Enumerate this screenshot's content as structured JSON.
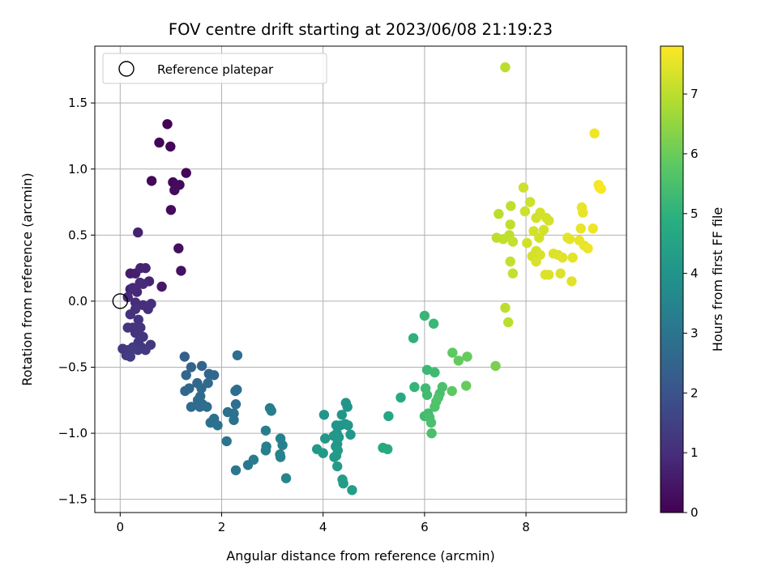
{
  "chart_data": {
    "type": "scatter",
    "title": "FOV centre drift starting at 2023/06/08 21:19:23",
    "xlabel": "Angular distance from reference (arcmin)",
    "ylabel": "Rotation from reference (arcmin)",
    "xlim": [
      -0.5,
      9.98
    ],
    "ylim": [
      -1.6,
      1.93
    ],
    "xticks": [
      0,
      2,
      4,
      6,
      8
    ],
    "xtick_labels": [
      "0",
      "2",
      "4",
      "6",
      "8"
    ],
    "yticks": [
      -1.5,
      -1.0,
      -0.5,
      0.0,
      0.5,
      1.0,
      1.5
    ],
    "ytick_labels": [
      "−1.5",
      "−1.0",
      "−0.5",
      "0.0",
      "0.5",
      "1.0",
      "1.5"
    ],
    "grid": true,
    "legend": {
      "position": "top-left",
      "entries": [
        {
          "label": "Reference platepar",
          "marker": "open-circle"
        }
      ]
    },
    "reference_point": {
      "x": 0.0,
      "y": 0.0
    },
    "colorbar": {
      "label": "Hours from first FF file",
      "min": 0,
      "max": 7.8,
      "colormap": "viridis",
      "ticks": [
        0,
        1,
        2,
        3,
        4,
        5,
        6,
        7
      ],
      "tick_labels": [
        "0",
        "1",
        "2",
        "3",
        "4",
        "5",
        "6",
        "7"
      ]
    },
    "points": [
      [
        0.93,
        1.34,
        0.05
      ],
      [
        0.77,
        1.2,
        0.08
      ],
      [
        0.99,
        1.17,
        0.1
      ],
      [
        1.3,
        0.97,
        0.12
      ],
      [
        0.62,
        0.91,
        0.15
      ],
      [
        1.04,
        0.9,
        0.18
      ],
      [
        1.17,
        0.88,
        0.2
      ],
      [
        1.07,
        0.84,
        0.22
      ],
      [
        1.0,
        0.69,
        0.25
      ],
      [
        1.15,
        0.4,
        0.3
      ],
      [
        1.2,
        0.23,
        0.35
      ],
      [
        0.82,
        0.11,
        0.5
      ],
      [
        0.2,
        0.21,
        0.6
      ],
      [
        0.3,
        0.21,
        0.65
      ],
      [
        0.2,
        0.09,
        0.7
      ],
      [
        0.4,
        0.25,
        0.75
      ],
      [
        0.5,
        0.25,
        0.78
      ],
      [
        0.57,
        0.15,
        0.8
      ],
      [
        0.33,
        0.07,
        0.85
      ],
      [
        0.45,
        0.13,
        0.88
      ],
      [
        0.35,
        0.52,
        0.7
      ],
      [
        0.39,
        0.14,
        0.9
      ],
      [
        0.25,
        0.1,
        0.9
      ],
      [
        0.15,
        0.03,
        0.95
      ],
      [
        0.3,
        -0.01,
        1.0
      ],
      [
        0.45,
        -0.03,
        1.0
      ],
      [
        0.61,
        -0.02,
        1.05
      ],
      [
        0.55,
        -0.06,
        1.05
      ],
      [
        0.3,
        -0.06,
        1.08
      ],
      [
        0.2,
        -0.1,
        1.1
      ],
      [
        0.36,
        -0.14,
        1.12
      ],
      [
        0.25,
        -0.2,
        1.15
      ],
      [
        0.4,
        -0.2,
        1.15
      ],
      [
        0.3,
        -0.24,
        1.18
      ],
      [
        0.15,
        -0.2,
        1.18
      ],
      [
        0.45,
        -0.27,
        1.2
      ],
      [
        0.36,
        -0.31,
        1.22
      ],
      [
        0.25,
        -0.35,
        1.25
      ],
      [
        0.42,
        -0.35,
        1.25
      ],
      [
        0.6,
        -0.33,
        1.28
      ],
      [
        0.05,
        -0.36,
        1.3
      ],
      [
        0.15,
        -0.37,
        1.3
      ],
      [
        0.5,
        -0.37,
        1.32
      ],
      [
        0.12,
        -0.41,
        1.35
      ],
      [
        0.35,
        -0.37,
        1.35
      ],
      [
        0.2,
        -0.42,
        1.38
      ],
      [
        0.25,
        -0.36,
        1.4
      ],
      [
        1.27,
        -0.42,
        2.4
      ],
      [
        1.61,
        -0.49,
        2.5
      ],
      [
        1.4,
        -0.5,
        2.5
      ],
      [
        1.3,
        -0.56,
        2.55
      ],
      [
        1.75,
        -0.55,
        2.6
      ],
      [
        1.85,
        -0.56,
        2.6
      ],
      [
        2.31,
        -0.41,
        2.8
      ],
      [
        1.52,
        -0.62,
        2.6
      ],
      [
        1.73,
        -0.62,
        2.7
      ],
      [
        1.6,
        -0.66,
        2.65
      ],
      [
        1.36,
        -0.66,
        2.6
      ],
      [
        1.28,
        -0.68,
        2.6
      ],
      [
        2.3,
        -0.67,
        2.8
      ],
      [
        2.27,
        -0.68,
        2.8
      ],
      [
        1.58,
        -0.72,
        2.7
      ],
      [
        1.53,
        -0.75,
        2.7
      ],
      [
        1.62,
        -0.78,
        2.75
      ],
      [
        2.28,
        -0.78,
        2.85
      ],
      [
        1.4,
        -0.8,
        2.7
      ],
      [
        1.57,
        -0.8,
        2.75
      ],
      [
        1.71,
        -0.8,
        2.8
      ],
      [
        2.12,
        -0.84,
        2.9
      ],
      [
        2.24,
        -0.85,
        2.9
      ],
      [
        1.85,
        -0.89,
        2.85
      ],
      [
        1.78,
        -0.92,
        2.85
      ],
      [
        2.24,
        -0.9,
        2.9
      ],
      [
        1.92,
        -0.94,
        2.9
      ],
      [
        2.1,
        -1.06,
        3.0
      ],
      [
        2.28,
        -1.28,
        3.1
      ],
      [
        2.52,
        -1.24,
        3.15
      ],
      [
        2.63,
        -1.2,
        3.2
      ],
      [
        2.95,
        -0.81,
        3.25
      ],
      [
        2.98,
        -0.83,
        3.3
      ],
      [
        2.87,
        -0.98,
        3.3
      ],
      [
        3.16,
        -1.04,
        3.35
      ],
      [
        3.2,
        -1.09,
        3.4
      ],
      [
        2.88,
        -1.1,
        3.35
      ],
      [
        2.87,
        -1.13,
        3.35
      ],
      [
        3.15,
        -1.16,
        3.4
      ],
      [
        3.16,
        -1.18,
        3.45
      ],
      [
        3.27,
        -1.34,
        3.5
      ],
      [
        4.02,
        -0.86,
        4.0
      ],
      [
        4.45,
        -0.77,
        4.05
      ],
      [
        4.48,
        -0.8,
        4.05
      ],
      [
        4.37,
        -0.86,
        4.05
      ],
      [
        4.34,
        -0.94,
        4.05
      ],
      [
        4.26,
        -0.94,
        4.0
      ],
      [
        4.44,
        -0.93,
        4.05
      ],
      [
        4.49,
        -0.94,
        4.1
      ],
      [
        4.27,
        -1.0,
        4.05
      ],
      [
        4.54,
        -1.01,
        4.1
      ],
      [
        4.31,
        -1.03,
        4.1
      ],
      [
        4.21,
        -1.02,
        4.1
      ],
      [
        4.04,
        -1.04,
        4.1
      ],
      [
        4.28,
        -1.08,
        4.15
      ],
      [
        4.25,
        -1.1,
        4.15
      ],
      [
        3.88,
        -1.12,
        4.15
      ],
      [
        4.29,
        -1.13,
        4.2
      ],
      [
        4.0,
        -1.15,
        4.2
      ],
      [
        4.26,
        -1.17,
        4.2
      ],
      [
        4.22,
        -1.18,
        4.2
      ],
      [
        4.28,
        -1.25,
        4.25
      ],
      [
        4.38,
        -1.35,
        4.3
      ],
      [
        4.4,
        -1.38,
        4.3
      ],
      [
        4.57,
        -1.43,
        4.35
      ],
      [
        5.29,
        -0.87,
        4.6
      ],
      [
        5.18,
        -1.11,
        4.65
      ],
      [
        5.27,
        -1.12,
        4.7
      ],
      [
        5.53,
        -0.73,
        4.75
      ],
      [
        5.78,
        -0.28,
        5.0
      ],
      [
        5.8,
        -0.65,
        5.1
      ],
      [
        6.0,
        -0.11,
        5.15
      ],
      [
        6.18,
        -0.17,
        5.2
      ],
      [
        6.05,
        -0.52,
        5.25
      ],
      [
        6.2,
        -0.54,
        5.3
      ],
      [
        6.02,
        -0.66,
        5.3
      ],
      [
        6.05,
        -0.71,
        5.35
      ],
      [
        6.3,
        -0.7,
        5.5
      ],
      [
        6.35,
        -0.65,
        5.5
      ],
      [
        6.27,
        -0.73,
        5.55
      ],
      [
        6.23,
        -0.76,
        5.6
      ],
      [
        6.2,
        -0.8,
        5.6
      ],
      [
        6.0,
        -0.87,
        5.35
      ],
      [
        6.07,
        -0.85,
        5.4
      ],
      [
        6.1,
        -0.88,
        5.45
      ],
      [
        6.13,
        -0.92,
        5.5
      ],
      [
        6.14,
        -1.0,
        5.5
      ],
      [
        6.54,
        -0.68,
        5.8
      ],
      [
        6.67,
        -0.45,
        5.9
      ],
      [
        6.55,
        -0.39,
        5.85
      ],
      [
        6.84,
        -0.42,
        5.95
      ],
      [
        6.82,
        -0.64,
        5.95
      ],
      [
        7.4,
        -0.49,
        6.2
      ],
      [
        7.59,
        1.77,
        7.0
      ],
      [
        7.46,
        0.66,
        7.0
      ],
      [
        7.7,
        0.72,
        7.05
      ],
      [
        7.69,
        0.58,
        7.05
      ],
      [
        7.42,
        0.48,
        7.0
      ],
      [
        7.55,
        0.47,
        7.05
      ],
      [
        7.67,
        0.5,
        7.05
      ],
      [
        7.74,
        0.45,
        7.1
      ],
      [
        7.59,
        -0.05,
        7.0
      ],
      [
        7.65,
        -0.16,
        7.0
      ],
      [
        7.69,
        0.3,
        7.1
      ],
      [
        7.74,
        0.21,
        7.1
      ],
      [
        7.95,
        0.86,
        7.2
      ],
      [
        8.08,
        0.75,
        7.2
      ],
      [
        7.98,
        0.68,
        7.2
      ],
      [
        8.2,
        0.63,
        7.25
      ],
      [
        8.28,
        0.67,
        7.3
      ],
      [
        8.4,
        0.63,
        7.3
      ],
      [
        8.45,
        0.61,
        7.3
      ],
      [
        8.35,
        0.54,
        7.3
      ],
      [
        8.15,
        0.53,
        7.3
      ],
      [
        8.02,
        0.44,
        7.25
      ],
      [
        8.26,
        0.48,
        7.3
      ],
      [
        8.2,
        0.38,
        7.3
      ],
      [
        8.28,
        0.35,
        7.35
      ],
      [
        8.12,
        0.34,
        7.3
      ],
      [
        8.2,
        0.3,
        7.35
      ],
      [
        8.38,
        0.2,
        7.4
      ],
      [
        8.45,
        0.2,
        7.4
      ],
      [
        8.54,
        0.36,
        7.4
      ],
      [
        8.63,
        0.35,
        7.4
      ],
      [
        8.72,
        0.33,
        7.45
      ],
      [
        8.68,
        0.21,
        7.4
      ],
      [
        8.82,
        0.48,
        7.5
      ],
      [
        8.86,
        0.47,
        7.5
      ],
      [
        8.92,
        0.33,
        7.5
      ],
      [
        8.9,
        0.15,
        7.45
      ],
      [
        9.05,
        0.46,
        7.55
      ],
      [
        9.1,
        0.71,
        7.55
      ],
      [
        9.08,
        0.55,
        7.55
      ],
      [
        9.12,
        0.67,
        7.55
      ],
      [
        9.15,
        0.42,
        7.55
      ],
      [
        9.22,
        0.4,
        7.6
      ],
      [
        9.32,
        0.55,
        7.6
      ],
      [
        9.35,
        1.27,
        7.65
      ],
      [
        9.43,
        0.88,
        7.7
      ],
      [
        9.45,
        0.86,
        7.7
      ],
      [
        9.48,
        0.85,
        7.75
      ]
    ]
  }
}
